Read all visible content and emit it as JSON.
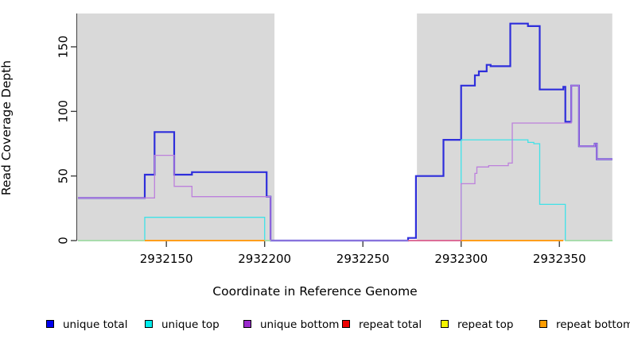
{
  "chart_data": {
    "type": "line",
    "style": "step",
    "title": "",
    "xlabel": "Coordinate in Reference Genome",
    "ylabel": "Read Coverage Depth",
    "xlim": [
      2932104.6,
      2932376.9
    ],
    "ylim": [
      0,
      175.8
    ],
    "x_ticks": [
      2932150,
      2932200,
      2932250,
      2932300,
      2932350
    ],
    "y_ticks": [
      0,
      50,
      100,
      150
    ],
    "grid": false,
    "legend_position": "bottom",
    "plot_background": "#FFFFFF",
    "shaded_regions": [
      {
        "x0": 2932104.6,
        "x1": 2932205.0,
        "color": "#D9D9D9"
      },
      {
        "x0": 2932277.5,
        "x1": 2932376.9,
        "color": "#D9D9D9"
      }
    ],
    "series": [
      {
        "name": "unique total",
        "legend_color": "#0000EE",
        "line_color": "#2E2EDB",
        "line_width": 2.2,
        "segments": [
          [
            [
              2932105,
              33
            ],
            [
              2932139,
              33
            ],
            [
              2932139,
              51
            ],
            [
              2932144,
              51
            ],
            [
              2932144,
              84
            ],
            [
              2932154,
              84
            ],
            [
              2932154,
              51
            ],
            [
              2932163,
              51
            ],
            [
              2932163,
              53
            ],
            [
              2932201,
              53
            ],
            [
              2932201,
              34
            ],
            [
              2932203,
              34
            ],
            [
              2932203,
              0
            ],
            [
              2932273,
              0
            ],
            [
              2932273,
              2
            ],
            [
              2932277,
              2
            ],
            [
              2932277,
              50
            ],
            [
              2932291,
              50
            ],
            [
              2932291,
              78
            ],
            [
              2932300,
              78
            ],
            [
              2932300,
              120
            ],
            [
              2932307,
              120
            ],
            [
              2932307,
              128
            ],
            [
              2932309,
              128
            ],
            [
              2932309,
              131
            ],
            [
              2932313,
              131
            ],
            [
              2932313,
              136
            ],
            [
              2932315,
              136
            ],
            [
              2932315,
              135
            ],
            [
              2932325,
              135
            ],
            [
              2932325,
              168
            ],
            [
              2932334,
              168
            ],
            [
              2932334,
              166
            ],
            [
              2932340,
              166
            ],
            [
              2932340,
              117
            ],
            [
              2932352,
              117
            ],
            [
              2932352,
              119
            ],
            [
              2932353,
              119
            ],
            [
              2932353,
              92
            ],
            [
              2932356,
              92
            ],
            [
              2932356,
              120
            ],
            [
              2932360,
              120
            ],
            [
              2932360,
              73
            ],
            [
              2932368,
              73
            ],
            [
              2932368,
              75
            ],
            [
              2932369,
              75
            ],
            [
              2932369,
              63
            ],
            [
              2932377,
              63
            ]
          ]
        ]
      },
      {
        "name": "unique top",
        "legend_color": "#00EEEE",
        "line_color": "#3FE2E8",
        "line_width": 1.3,
        "segments": [
          [
            [
              2932105,
              0
            ],
            [
              2932139,
              0
            ],
            [
              2932139,
              18
            ],
            [
              2932200,
              18
            ],
            [
              2932200,
              0
            ],
            [
              2932300,
              0
            ],
            [
              2932300,
              78
            ],
            [
              2932334,
              78
            ],
            [
              2932334,
              76
            ],
            [
              2932337,
              76
            ],
            [
              2932337,
              75
            ],
            [
              2932340,
              75
            ],
            [
              2932340,
              28
            ],
            [
              2932353,
              28
            ],
            [
              2932353,
              0
            ],
            [
              2932377,
              0
            ]
          ]
        ]
      },
      {
        "name": "unique bottom",
        "legend_color": "#9A2ACD",
        "line_color": "#BD80DC",
        "line_width": 1.3,
        "segments": [
          [
            [
              2932105,
              33
            ],
            [
              2932144,
              33
            ],
            [
              2932144,
              66
            ],
            [
              2932154,
              66
            ],
            [
              2932154,
              42
            ],
            [
              2932163,
              42
            ],
            [
              2932163,
              34
            ],
            [
              2932203,
              34
            ],
            [
              2932203,
              0
            ],
            [
              2932300,
              0
            ],
            [
              2932300,
              44
            ],
            [
              2932307,
              44
            ],
            [
              2932307,
              52
            ],
            [
              2932308,
              52
            ],
            [
              2932308,
              57
            ],
            [
              2932314,
              57
            ],
            [
              2932314,
              58
            ],
            [
              2932324,
              58
            ],
            [
              2932324,
              60
            ],
            [
              2932326,
              60
            ],
            [
              2932326,
              91
            ],
            [
              2932356,
              91
            ],
            [
              2932356,
              120
            ],
            [
              2932360,
              120
            ],
            [
              2932360,
              73
            ],
            [
              2932368,
              73
            ],
            [
              2932368,
              75
            ],
            [
              2932369,
              75
            ],
            [
              2932369,
              63
            ],
            [
              2932377,
              63
            ]
          ]
        ]
      },
      {
        "name": "repeat total",
        "legend_color": "#EE0000",
        "line_color": "#E0608C",
        "line_width": 1.8,
        "segments": [
          [
            [
              2932273,
              0
            ],
            [
              2932300,
              0
            ]
          ]
        ]
      },
      {
        "name": "repeat top",
        "legend_color": "#F5F500",
        "line_color": "#A6DBA4",
        "line_width": 1.8,
        "segments": [
          [
            [
              2932105,
              0
            ],
            [
              2932139,
              0
            ]
          ],
          [
            [
              2932200,
              0
            ],
            [
              2932203,
              0
            ]
          ],
          [
            [
              2932353,
              0
            ],
            [
              2932377,
              0
            ]
          ]
        ]
      },
      {
        "name": "repeat bottom",
        "legend_color": "#FF9D00",
        "line_color": "#FF9E1B",
        "line_width": 2,
        "segments": [
          [
            [
              2932139,
              0
            ],
            [
              2932200,
              0
            ]
          ],
          [
            [
              2932300,
              0
            ],
            [
              2932352,
              0
            ]
          ]
        ]
      }
    ]
  }
}
